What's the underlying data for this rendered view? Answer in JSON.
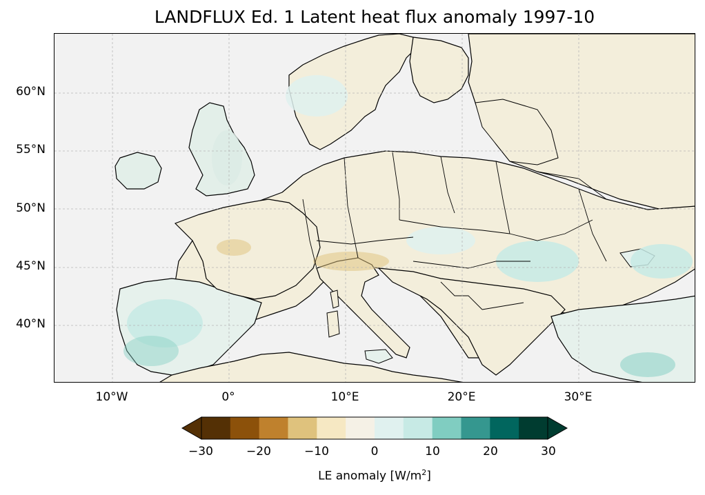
{
  "title": "LANDFLUX Ed. 1 Latent heat flux anomaly 1997-10",
  "map": {
    "projection": "PlateCarree",
    "lon_range": [
      -15,
      40
    ],
    "lat_range": [
      35,
      65
    ],
    "lat_ticks": [
      "60°N",
      "55°N",
      "50°N",
      "45°N",
      "40°N"
    ],
    "lon_ticks": [
      "10°W",
      "0°",
      "10°E",
      "20°E",
      "30°E"
    ],
    "gridlines": true,
    "land_fill": "#f2f2f2",
    "background": "#f2f2f2"
  },
  "colorbar": {
    "label_prefix": "LE anomaly [W/m",
    "label_sup": "2",
    "label_suffix": "]",
    "ticks": [
      "−30",
      "−20",
      "−10",
      "0",
      "10",
      "20",
      "30"
    ],
    "colors": [
      "#543005",
      "#8c510a",
      "#bf812d",
      "#dfc27d",
      "#f6e8c3",
      "#f5f1e6",
      "#e0f1ef",
      "#c7eae5",
      "#80cdc1",
      "#35978f",
      "#01665e",
      "#003c30"
    ],
    "extend": "both"
  }
}
